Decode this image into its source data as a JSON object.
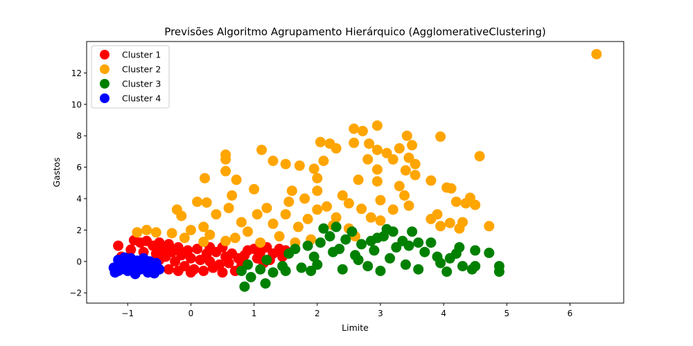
{
  "chart_data": {
    "type": "scatter",
    "title": "Previsões Algoritmo Agrupamento Hierárquico (AgglomerativeClustering)",
    "xlabel": "Limite",
    "ylabel": "Gastos",
    "xlim": [
      -1.65,
      6.85
    ],
    "ylim": [
      -2.65,
      14.0
    ],
    "xticks": [
      -1,
      0,
      1,
      2,
      3,
      4,
      5,
      6
    ],
    "xtick_labels": [
      "−1",
      "0",
      "1",
      "2",
      "3",
      "4",
      "5",
      "6"
    ],
    "yticks": [
      -2,
      0,
      2,
      4,
      6,
      8,
      10,
      12
    ],
    "ytick_labels": [
      "−2",
      "0",
      "2",
      "4",
      "6",
      "8",
      "10",
      "12"
    ],
    "grid": false,
    "legend_position": "top-left",
    "series": [
      {
        "name": "Cluster 1",
        "color": "#ff0000",
        "points": [
          [
            -1.15,
            1.0
          ],
          [
            -1.1,
            0.3
          ],
          [
            -0.95,
            0.75
          ],
          [
            -0.9,
            1.35
          ],
          [
            -0.8,
            1.2
          ],
          [
            -0.75,
            0.6
          ],
          [
            -0.7,
            1.3
          ],
          [
            -0.6,
            1.0
          ],
          [
            -0.55,
            0.5
          ],
          [
            -0.5,
            1.2
          ],
          [
            -0.45,
            0.8
          ],
          [
            -0.4,
            0.3
          ],
          [
            -0.35,
            1.1
          ],
          [
            -0.3,
            0.6
          ],
          [
            -0.25,
            0.0
          ],
          [
            -0.2,
            0.9
          ],
          [
            -0.15,
            0.4
          ],
          [
            -0.1,
            -0.3
          ],
          [
            -0.05,
            0.7
          ],
          [
            0.0,
            0.2
          ],
          [
            0.05,
            -0.5
          ],
          [
            0.1,
            0.8
          ],
          [
            0.15,
            0.1
          ],
          [
            0.2,
            -0.6
          ],
          [
            0.25,
            0.5
          ],
          [
            0.3,
            0.0
          ],
          [
            0.35,
            -0.4
          ],
          [
            0.4,
            0.6
          ],
          [
            0.45,
            -0.2
          ],
          [
            0.5,
            -0.7
          ],
          [
            0.55,
            0.3
          ],
          [
            0.6,
            -0.1
          ],
          [
            0.65,
            0.5
          ],
          [
            0.7,
            -0.6
          ],
          [
            0.75,
            0.2
          ],
          [
            0.8,
            -0.3
          ],
          [
            0.85,
            0.4
          ],
          [
            0.9,
            0.7
          ],
          [
            1.0,
            0.8
          ],
          [
            1.05,
            0.2
          ],
          [
            1.1,
            0.6
          ],
          [
            1.2,
            0.9
          ],
          [
            1.25,
            0.1
          ],
          [
            1.3,
            0.5
          ],
          [
            1.4,
            0.8
          ],
          [
            1.45,
            0.3
          ],
          [
            1.5,
            0.7
          ],
          [
            -0.2,
            -0.6
          ],
          [
            0.0,
            -0.7
          ],
          [
            -0.35,
            -0.5
          ],
          [
            0.3,
            0.9
          ],
          [
            0.5,
            0.9
          ],
          [
            -0.5,
            0.1
          ],
          [
            -0.8,
            0.0
          ],
          [
            0.8,
            0.0
          ],
          [
            1.15,
            -0.1
          ]
        ]
      },
      {
        "name": "Cluster 2",
        "color": "#ffa500",
        "points": [
          [
            6.42,
            13.2
          ],
          [
            2.95,
            8.65
          ],
          [
            2.58,
            8.45
          ],
          [
            2.72,
            8.3
          ],
          [
            3.42,
            8.0
          ],
          [
            3.95,
            7.95
          ],
          [
            2.05,
            7.6
          ],
          [
            2.2,
            7.5
          ],
          [
            2.58,
            7.55
          ],
          [
            2.82,
            7.5
          ],
          [
            3.5,
            7.4
          ],
          [
            1.12,
            7.1
          ],
          [
            2.3,
            7.2
          ],
          [
            2.95,
            7.1
          ],
          [
            3.1,
            6.9
          ],
          [
            3.3,
            7.2
          ],
          [
            0.55,
            6.8
          ],
          [
            4.57,
            6.7
          ],
          [
            3.45,
            6.6
          ],
          [
            0.55,
            6.5
          ],
          [
            1.3,
            6.4
          ],
          [
            2.1,
            6.4
          ],
          [
            2.8,
            6.5
          ],
          [
            3.2,
            6.5
          ],
          [
            1.5,
            6.2
          ],
          [
            1.72,
            6.1
          ],
          [
            3.55,
            6.2
          ],
          [
            1.95,
            5.9
          ],
          [
            2.95,
            5.85
          ],
          [
            3.4,
            5.8
          ],
          [
            0.55,
            5.75
          ],
          [
            3.55,
            5.5
          ],
          [
            2.0,
            5.3
          ],
          [
            0.22,
            5.3
          ],
          [
            0.72,
            5.2
          ],
          [
            2.65,
            5.2
          ],
          [
            2.95,
            5.1
          ],
          [
            3.8,
            5.15
          ],
          [
            3.3,
            4.8
          ],
          [
            1.0,
            4.6
          ],
          [
            1.6,
            4.5
          ],
          [
            4.05,
            4.7
          ],
          [
            4.12,
            4.65
          ],
          [
            2.0,
            4.5
          ],
          [
            3.38,
            4.2
          ],
          [
            0.65,
            4.2
          ],
          [
            1.8,
            4.0
          ],
          [
            2.5,
            3.7
          ],
          [
            4.42,
            4.05
          ],
          [
            3.0,
            3.9
          ],
          [
            4.2,
            3.8
          ],
          [
            0.1,
            3.8
          ],
          [
            0.25,
            3.75
          ],
          [
            4.35,
            3.7
          ],
          [
            4.5,
            3.6
          ],
          [
            3.45,
            3.55
          ],
          [
            1.2,
            3.4
          ],
          [
            2.0,
            3.3
          ],
          [
            2.7,
            3.35
          ],
          [
            3.2,
            3.3
          ],
          [
            -0.22,
            3.3
          ],
          [
            3.9,
            3.0
          ],
          [
            1.5,
            3.0
          ],
          [
            -0.15,
            2.9
          ],
          [
            0.4,
            3.0
          ],
          [
            2.3,
            2.8
          ],
          [
            2.85,
            2.8
          ],
          [
            3.0,
            2.6
          ],
          [
            3.8,
            2.7
          ],
          [
            4.1,
            2.45
          ],
          [
            4.3,
            2.5
          ],
          [
            0.8,
            2.5
          ],
          [
            3.95,
            2.25
          ],
          [
            4.72,
            2.25
          ],
          [
            0.2,
            2.2
          ],
          [
            1.7,
            2.2
          ],
          [
            4.25,
            2.1
          ],
          [
            -0.55,
            1.85
          ],
          [
            -0.85,
            1.85
          ],
          [
            -0.7,
            2.0
          ],
          [
            0.0,
            2.0
          ],
          [
            -0.3,
            1.8
          ],
          [
            0.3,
            1.7
          ],
          [
            0.9,
            1.9
          ],
          [
            1.4,
            1.6
          ],
          [
            2.6,
            1.6
          ],
          [
            0.55,
            1.3
          ],
          [
            1.1,
            1.2
          ],
          [
            1.9,
            1.4
          ],
          [
            0.2,
            1.25
          ],
          [
            -0.1,
            1.5
          ],
          [
            0.7,
            1.5
          ],
          [
            1.3,
            2.4
          ],
          [
            1.55,
            3.8
          ],
          [
            1.85,
            2.7
          ],
          [
            2.15,
            3.5
          ],
          [
            2.4,
            4.2
          ],
          [
            1.05,
            3.0
          ],
          [
            0.6,
            3.4
          ],
          [
            2.25,
            2.3
          ],
          [
            1.65,
            1.2
          ],
          [
            2.5,
            2.1
          ]
        ]
      },
      {
        "name": "Cluster 3",
        "color": "#008000",
        "points": [
          [
            0.85,
            -1.6
          ],
          [
            1.18,
            -1.4
          ],
          [
            0.95,
            -1.0
          ],
          [
            0.8,
            -0.6
          ],
          [
            0.9,
            -0.2
          ],
          [
            1.1,
            -0.5
          ],
          [
            1.2,
            0.1
          ],
          [
            1.3,
            -0.7
          ],
          [
            1.45,
            -0.3
          ],
          [
            1.55,
            0.5
          ],
          [
            1.65,
            0.8
          ],
          [
            1.75,
            -0.4
          ],
          [
            1.85,
            1.0
          ],
          [
            1.95,
            0.3
          ],
          [
            2.05,
            1.2
          ],
          [
            2.1,
            2.1
          ],
          [
            2.2,
            1.6
          ],
          [
            2.3,
            2.2
          ],
          [
            2.35,
            0.8
          ],
          [
            2.45,
            1.4
          ],
          [
            2.55,
            1.9
          ],
          [
            2.6,
            0.4
          ],
          [
            2.7,
            1.1
          ],
          [
            2.8,
            -0.3
          ],
          [
            2.9,
            0.7
          ],
          [
            2.95,
            1.5
          ],
          [
            3.05,
            1.6
          ],
          [
            3.1,
            2.05
          ],
          [
            3.2,
            1.9
          ],
          [
            3.25,
            0.9
          ],
          [
            3.35,
            1.3
          ],
          [
            3.45,
            1.0
          ],
          [
            3.5,
            1.9
          ],
          [
            3.6,
            1.2
          ],
          [
            3.7,
            0.6
          ],
          [
            3.8,
            1.2
          ],
          [
            3.9,
            0.3
          ],
          [
            3.95,
            -0.1
          ],
          [
            4.1,
            0.2
          ],
          [
            4.2,
            0.5
          ],
          [
            4.25,
            0.9
          ],
          [
            4.3,
            -0.3
          ],
          [
            4.45,
            -0.5
          ],
          [
            4.5,
            0.7
          ],
          [
            4.5,
            -0.3
          ],
          [
            4.72,
            0.55
          ],
          [
            4.88,
            -0.3
          ],
          [
            4.88,
            -0.65
          ],
          [
            3.0,
            -0.6
          ],
          [
            3.6,
            -0.5
          ],
          [
            4.05,
            -0.65
          ],
          [
            2.4,
            -0.5
          ],
          [
            1.9,
            -0.6
          ],
          [
            2.65,
            0.1
          ],
          [
            3.15,
            0.2
          ],
          [
            3.4,
            -0.2
          ],
          [
            1.5,
            -0.6
          ],
          [
            2.0,
            -0.2
          ],
          [
            2.25,
            0.6
          ],
          [
            2.85,
            1.3
          ]
        ]
      },
      {
        "name": "Cluster 4",
        "color": "#0000ff",
        "points": [
          [
            -1.22,
            -0.4
          ],
          [
            -1.2,
            -0.7
          ],
          [
            -1.15,
            0.1
          ],
          [
            -1.1,
            -0.5
          ],
          [
            -1.05,
            -0.2
          ],
          [
            -1.0,
            -0.6
          ],
          [
            -0.95,
            0.2
          ],
          [
            -0.92,
            -0.3
          ],
          [
            -0.88,
            -0.8
          ],
          [
            -0.85,
            0.05
          ],
          [
            -0.8,
            -0.5
          ],
          [
            -0.75,
            0.2
          ],
          [
            -0.72,
            -0.2
          ],
          [
            -0.68,
            -0.7
          ],
          [
            -0.65,
            0.0
          ],
          [
            -0.6,
            -0.4
          ],
          [
            -0.58,
            -0.75
          ],
          [
            -0.55,
            -0.1
          ],
          [
            -0.5,
            -0.5
          ],
          [
            -1.15,
            -0.6
          ],
          [
            -0.98,
            -0.05
          ],
          [
            -0.78,
            -0.3
          ],
          [
            -0.62,
            -0.6
          ],
          [
            -1.05,
            0.25
          ]
        ]
      }
    ]
  }
}
